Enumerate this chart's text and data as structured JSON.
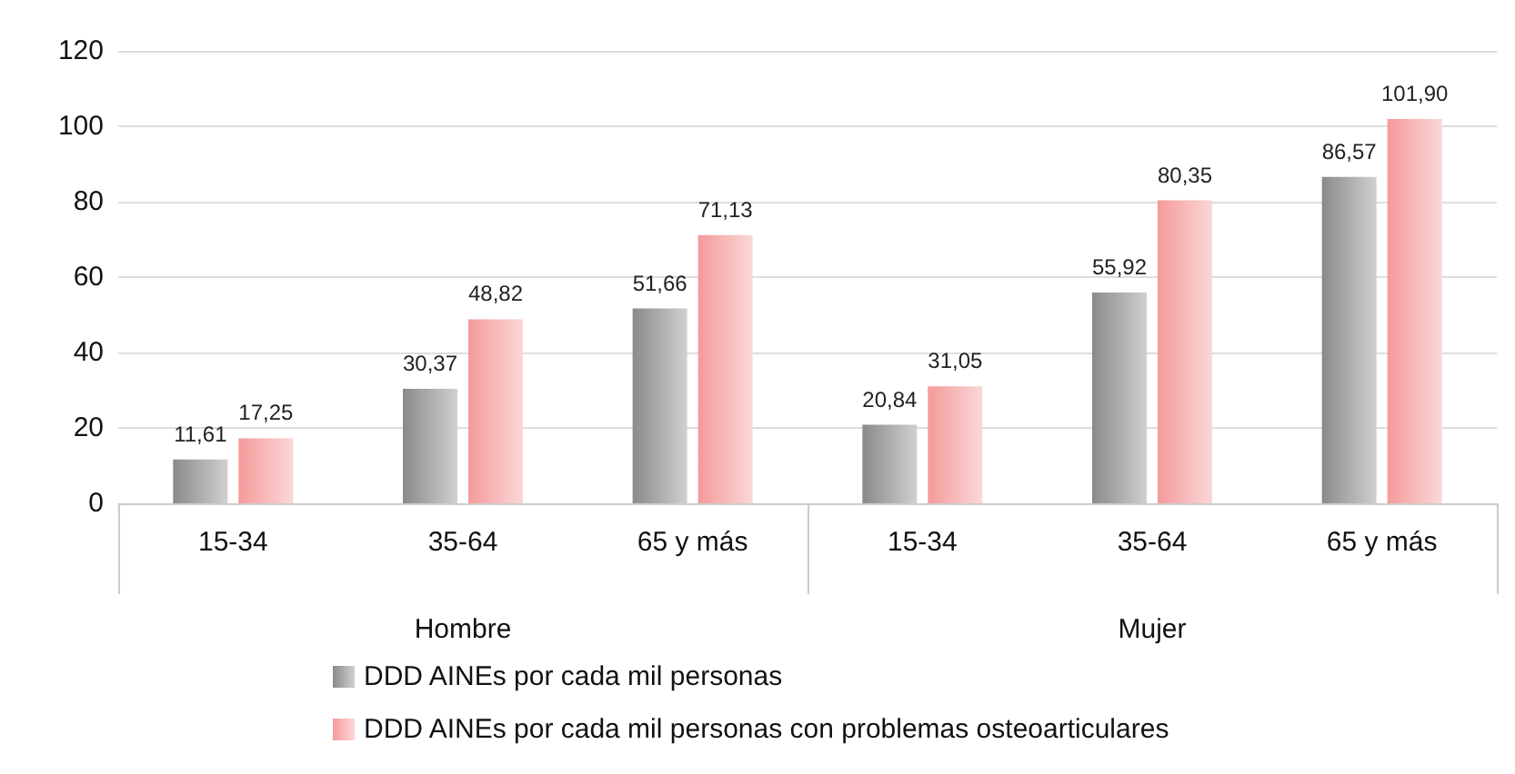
{
  "chart_data": {
    "type": "bar",
    "categories": [
      "15-34",
      "35-64",
      "65 y más",
      "15-34",
      "35-64",
      "65 y más"
    ],
    "annotations": [
      "Hombre",
      "Mujer"
    ],
    "series": [
      {
        "name": "DDD AINEs por cada mil personas",
        "color": "#8a8a8a",
        "values": [
          11.61,
          30.37,
          51.66,
          20.84,
          55.92,
          86.57
        ],
        "value_labels": [
          "11,61",
          "30,37",
          "51,66",
          "20,84",
          "55,92",
          "86,57"
        ]
      },
      {
        "name": "DDD AINEs por cada mil personas con problemas osteoarticulares",
        "color": "#f59a9a",
        "values": [
          17.25,
          48.82,
          71.13,
          31.05,
          80.35,
          101.9
        ],
        "value_labels": [
          "17,25",
          "48,82",
          "71,13",
          "31,05",
          "80,35",
          "101,90"
        ]
      }
    ],
    "ylim": [
      0,
      120
    ],
    "yticks": [
      0,
      20,
      40,
      60,
      80,
      100,
      120
    ],
    "grid": "y",
    "legend": "bottom"
  }
}
